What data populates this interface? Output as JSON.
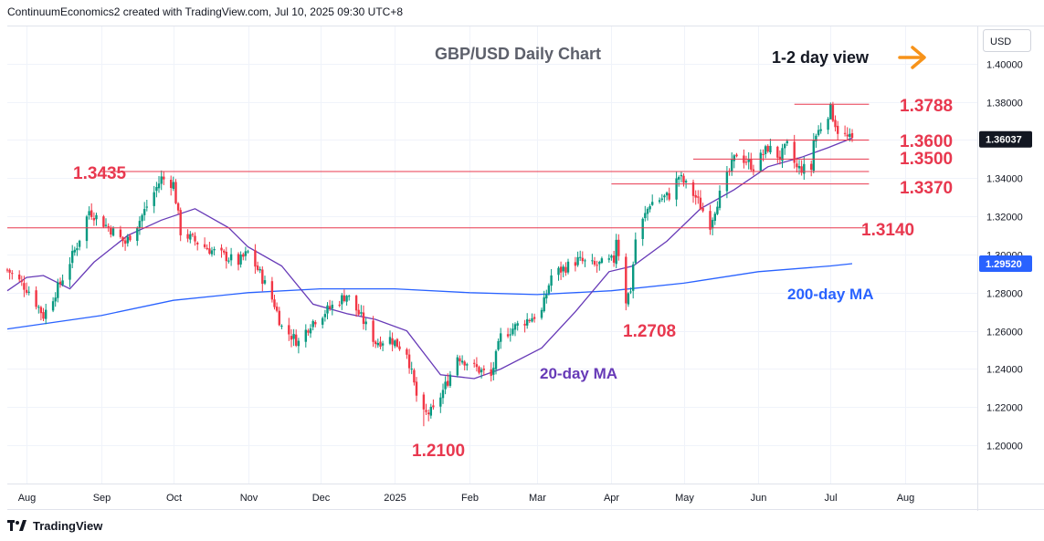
{
  "header": {
    "attribution": "ContinuumEconomics2 created with TradingView.com, Jul 10, 2025 09:30 UTC+8"
  },
  "footer": {
    "brand": "TradingView"
  },
  "price_axis": {
    "currency": "USD",
    "last_price_label": "1.36037",
    "ma200_label": "1.29520"
  },
  "annotations": {
    "title": "GBP/USD Daily Chart",
    "view": "1-2 day view",
    "ma20_label": "20-day MA",
    "ma200_label": "200-day MA"
  },
  "colors": {
    "up": "#089981",
    "down": "#f23645",
    "level": "#e8384f",
    "ma20": "#673ab7",
    "ma200": "#2962ff",
    "arrow": "#f7931a",
    "last_badge": "#131722",
    "ma200_badge": "#2962ff"
  },
  "chart_data": {
    "type": "candlestick",
    "title": "GBP/USD Daily Chart",
    "ylim": [
      1.18,
      1.42
    ],
    "yticks": [
      "1.40000",
      "1.38000",
      "1.36000",
      "1.34000",
      "1.32000",
      "1.30000",
      "1.28000",
      "1.26000",
      "1.24000",
      "1.22000",
      "1.20000"
    ],
    "ytick_values": [
      1.4,
      1.38,
      1.36,
      1.34,
      1.32,
      1.3,
      1.28,
      1.26,
      1.24,
      1.22,
      1.2
    ],
    "x_range": [
      "2024-07-24",
      "2025-08-31"
    ],
    "month_ticks": [
      {
        "label": "Aug",
        "date": "2024-08-01"
      },
      {
        "label": "Sep",
        "date": "2024-09-01"
      },
      {
        "label": "Oct",
        "date": "2024-10-01"
      },
      {
        "label": "Nov",
        "date": "2024-11-01"
      },
      {
        "label": "Dec",
        "date": "2024-12-01"
      },
      {
        "label": "2025",
        "date": "2025-01-01"
      },
      {
        "label": "Feb",
        "date": "2025-02-01"
      },
      {
        "label": "Mar",
        "date": "2025-03-01"
      },
      {
        "label": "Apr",
        "date": "2025-04-01"
      },
      {
        "label": "May",
        "date": "2025-05-01"
      },
      {
        "label": "Jun",
        "date": "2025-06-01"
      },
      {
        "label": "Jul",
        "date": "2025-07-01"
      },
      {
        "label": "Aug",
        "date": "2025-08-01"
      }
    ],
    "close_path": [
      [
        "2024-07-24",
        1.292
      ],
      [
        "2024-07-29",
        1.286
      ],
      [
        "2024-08-02",
        1.281
      ],
      [
        "2024-08-08",
        1.268
      ],
      [
        "2024-08-15",
        1.285
      ],
      [
        "2024-08-22",
        1.305
      ],
      [
        "2024-08-27",
        1.323
      ],
      [
        "2024-09-06",
        1.312
      ],
      [
        "2024-09-11",
        1.306
      ],
      [
        "2024-09-17",
        1.318
      ],
      [
        "2024-09-26",
        1.34
      ],
      [
        "2024-10-01",
        1.337
      ],
      [
        "2024-10-04",
        1.312
      ],
      [
        "2024-10-10",
        1.307
      ],
      [
        "2024-10-17",
        1.302
      ],
      [
        "2024-10-28",
        1.296
      ],
      [
        "2024-11-01",
        1.301
      ],
      [
        "2024-11-06",
        1.29
      ],
      [
        "2024-11-12",
        1.274
      ],
      [
        "2024-11-15",
        1.262
      ],
      [
        "2024-11-22",
        1.254
      ],
      [
        "2024-11-27",
        1.264
      ],
      [
        "2024-12-06",
        1.273
      ],
      [
        "2024-12-12",
        1.279
      ],
      [
        "2024-12-18",
        1.267
      ],
      [
        "2024-12-24",
        1.254
      ],
      [
        "2024-12-30",
        1.256
      ],
      [
        "2025-01-06",
        1.249
      ],
      [
        "2025-01-10",
        1.226
      ],
      [
        "2025-01-13",
        1.216
      ],
      [
        "2025-01-17",
        1.218
      ],
      [
        "2025-01-23",
        1.234
      ],
      [
        "2025-01-27",
        1.247
      ],
      [
        "2025-02-03",
        1.241
      ],
      [
        "2025-02-10",
        1.236
      ],
      [
        "2025-02-14",
        1.257
      ],
      [
        "2025-02-21",
        1.263
      ],
      [
        "2025-03-03",
        1.27
      ],
      [
        "2025-03-07",
        1.289
      ],
      [
        "2025-03-18",
        1.297
      ],
      [
        "2025-03-25",
        1.294
      ],
      [
        "2025-04-02",
        1.297
      ],
      [
        "2025-04-03",
        1.309
      ],
      [
        "2025-04-07",
        1.276
      ],
      [
        "2025-04-09",
        1.282
      ],
      [
        "2025-04-11",
        1.308
      ],
      [
        "2025-04-17",
        1.327
      ],
      [
        "2025-04-25",
        1.331
      ],
      [
        "2025-04-29",
        1.341
      ],
      [
        "2025-05-06",
        1.33
      ],
      [
        "2025-05-12",
        1.316
      ],
      [
        "2025-05-15",
        1.328
      ],
      [
        "2025-05-23",
        1.353
      ],
      [
        "2025-05-30",
        1.346
      ],
      [
        "2025-06-05",
        1.356
      ],
      [
        "2025-06-10",
        1.351
      ],
      [
        "2025-06-13",
        1.357
      ],
      [
        "2025-06-17",
        1.345
      ],
      [
        "2025-06-20",
        1.345
      ],
      [
        "2025-06-23",
        1.345
      ],
      [
        "2025-06-24",
        1.36
      ],
      [
        "2025-06-30",
        1.374
      ],
      [
        "2025-07-01",
        1.376
      ],
      [
        "2025-07-04",
        1.365
      ],
      [
        "2025-07-08",
        1.361
      ],
      [
        "2025-07-10",
        1.36
      ]
    ],
    "key_points": [
      {
        "date": "2024-09-27",
        "value": 1.3435
      },
      {
        "date": "2025-01-13",
        "value": 1.21
      },
      {
        "date": "2025-04-07",
        "value": 1.2708
      },
      {
        "date": "2025-07-01",
        "value": 1.3788
      }
    ],
    "ma20_path": [
      [
        "2024-07-24",
        1.281
      ],
      [
        "2024-08-01",
        1.288
      ],
      [
        "2024-08-08",
        1.289
      ],
      [
        "2024-08-19",
        1.282
      ],
      [
        "2024-08-29",
        1.296
      ],
      [
        "2024-09-12",
        1.31
      ],
      [
        "2024-09-26",
        1.318
      ],
      [
        "2024-10-10",
        1.324
      ],
      [
        "2024-10-24",
        1.314
      ],
      [
        "2024-11-01",
        1.304
      ],
      [
        "2024-11-15",
        1.294
      ],
      [
        "2024-11-28",
        1.274
      ],
      [
        "2024-12-12",
        1.269
      ],
      [
        "2024-12-24",
        1.266
      ],
      [
        "2025-01-06",
        1.26
      ],
      [
        "2025-01-20",
        1.237
      ],
      [
        "2025-02-03",
        1.235
      ],
      [
        "2025-02-14",
        1.24
      ],
      [
        "2025-03-03",
        1.251
      ],
      [
        "2025-03-17",
        1.27
      ],
      [
        "2025-03-31",
        1.291
      ],
      [
        "2025-04-10",
        1.294
      ],
      [
        "2025-04-24",
        1.307
      ],
      [
        "2025-05-08",
        1.324
      ],
      [
        "2025-05-22",
        1.334
      ],
      [
        "2025-06-05",
        1.346
      ],
      [
        "2025-06-19",
        1.351
      ],
      [
        "2025-06-30",
        1.356
      ],
      [
        "2025-07-10",
        1.361
      ]
    ],
    "ma200_path": [
      [
        "2024-07-24",
        1.261
      ],
      [
        "2024-09-01",
        1.268
      ],
      [
        "2024-10-01",
        1.276
      ],
      [
        "2024-11-01",
        1.28
      ],
      [
        "2024-12-01",
        1.282
      ],
      [
        "2025-01-01",
        1.282
      ],
      [
        "2025-02-01",
        1.28
      ],
      [
        "2025-03-01",
        1.279
      ],
      [
        "2025-04-01",
        1.281
      ],
      [
        "2025-05-01",
        1.285
      ],
      [
        "2025-06-01",
        1.291
      ],
      [
        "2025-07-01",
        1.294
      ],
      [
        "2025-07-10",
        1.2952
      ]
    ],
    "levels": [
      {
        "label": "1.3788",
        "value": 1.3788,
        "from": "2025-06-16",
        "to": "2025-07-17"
      },
      {
        "label": "1.3600",
        "value": 1.36,
        "from": "2025-05-24",
        "to": "2025-07-17"
      },
      {
        "label": "1.3500",
        "value": 1.35,
        "from": "2025-05-05",
        "to": "2025-07-17"
      },
      {
        "label": "1.3435",
        "value": 1.3435,
        "from": "2024-09-01",
        "to": "2025-07-17"
      },
      {
        "label": "1.3370",
        "value": 1.337,
        "from": "2025-04-01",
        "to": "2025-07-17"
      },
      {
        "label": "1.3140",
        "value": 1.314,
        "from": "2024-07-24",
        "to": "2025-07-16"
      }
    ],
    "point_labels": [
      {
        "label": "1.2100",
        "value": 1.21
      },
      {
        "label": "1.2708",
        "value": 1.2708
      }
    ]
  }
}
